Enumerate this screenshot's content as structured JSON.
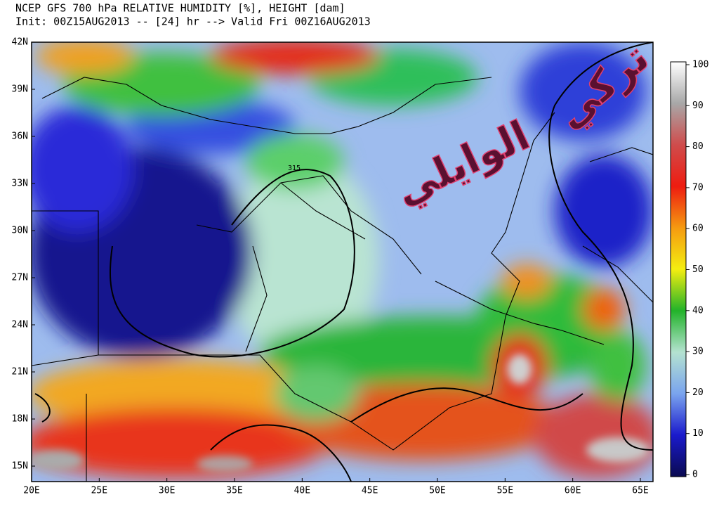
{
  "header": {
    "title": "NCEP GFS 700 hPa RELATIVE HUMIDITY [%], HEIGHT [dam]",
    "subtitle": "Init: 00Z15AUG2013 -- [24] hr --> Valid Fri 00Z16AUG2013"
  },
  "map": {
    "lat_labels": [
      "42N",
      "39N",
      "36N",
      "33N",
      "30N",
      "27N",
      "24N",
      "21N",
      "18N",
      "15N"
    ],
    "lon_labels": [
      "20E",
      "25E",
      "30E",
      "35E",
      "40E",
      "45E",
      "50E",
      "55E",
      "60E",
      "65E"
    ],
    "contour_label": "315",
    "watermark_1": "تركي",
    "watermark_2": "الوايلي"
  },
  "colorbar": {
    "lim": [
      0,
      100
    ],
    "ticks": [
      0,
      10,
      20,
      30,
      40,
      50,
      60,
      70,
      80,
      90,
      100
    ]
  }
}
